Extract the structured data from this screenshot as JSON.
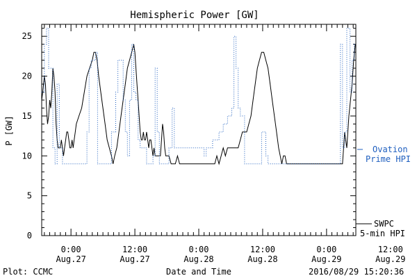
{
  "chart_data": {
    "type": "line",
    "title": "Hemispheric Power [GW]",
    "xlabel": "Date and Time",
    "ylabel": "P [GW]",
    "ylim": [
      0,
      26.5
    ],
    "xlim": [
      -5.5,
      53.5
    ],
    "yticks": [
      0,
      5,
      10,
      15,
      20,
      25
    ],
    "xticks": [
      {
        "x": 0,
        "line1": "0:00",
        "line2": "Aug.27"
      },
      {
        "x": 12,
        "line1": "12:00",
        "line2": "Aug.27"
      },
      {
        "x": 24,
        "line1": "0:00",
        "line2": "Aug.28"
      },
      {
        "x": 36,
        "line1": "12:00",
        "line2": "Aug.28"
      },
      {
        "x": 48,
        "line1": "0:00",
        "line2": "Aug.29"
      },
      {
        "x": 60,
        "line1": "12:00",
        "line2": "Aug.29"
      }
    ],
    "grid": false,
    "legend_position": "right",
    "series": [
      {
        "name": "SWPC 5-min HPI",
        "color": "#000000",
        "style": "solid",
        "points": [
          [
            -5.5,
            17
          ],
          [
            -5.3,
            18
          ],
          [
            -5.0,
            20
          ],
          [
            -4.8,
            19
          ],
          [
            -4.6,
            16
          ],
          [
            -4.4,
            14
          ],
          [
            -4.2,
            15
          ],
          [
            -4.0,
            17
          ],
          [
            -3.8,
            16
          ],
          [
            -3.6,
            18
          ],
          [
            -3.4,
            21
          ],
          [
            -3.2,
            20
          ],
          [
            -3.0,
            18
          ],
          [
            -2.8,
            14
          ],
          [
            -2.6,
            12
          ],
          [
            -2.4,
            11
          ],
          [
            -2.2,
            11
          ],
          [
            -2.0,
            11
          ],
          [
            -1.8,
            12
          ],
          [
            -1.6,
            11
          ],
          [
            -1.4,
            10
          ],
          [
            -1.2,
            11
          ],
          [
            -1.0,
            12
          ],
          [
            -0.8,
            13
          ],
          [
            -0.6,
            13
          ],
          [
            -0.4,
            12
          ],
          [
            -0.2,
            11
          ],
          [
            0.0,
            11
          ],
          [
            0.2,
            12
          ],
          [
            0.4,
            11
          ],
          [
            0.6,
            12
          ],
          [
            0.8,
            13
          ],
          [
            1.0,
            14
          ],
          [
            1.5,
            15
          ],
          [
            2.0,
            16
          ],
          [
            2.5,
            18
          ],
          [
            3.0,
            20
          ],
          [
            3.5,
            21
          ],
          [
            4.0,
            22
          ],
          [
            4.3,
            23
          ],
          [
            4.6,
            23
          ],
          [
            4.9,
            22
          ],
          [
            5.2,
            20
          ],
          [
            5.6,
            18
          ],
          [
            6.0,
            16
          ],
          [
            6.4,
            14
          ],
          [
            6.8,
            12
          ],
          [
            7.2,
            11
          ],
          [
            7.6,
            10
          ],
          [
            7.9,
            9
          ],
          [
            8.2,
            10
          ],
          [
            8.6,
            11
          ],
          [
            9.0,
            13
          ],
          [
            9.4,
            15
          ],
          [
            9.8,
            17
          ],
          [
            10.2,
            19
          ],
          [
            10.6,
            21
          ],
          [
            11.0,
            22
          ],
          [
            11.4,
            23
          ],
          [
            11.8,
            24
          ],
          [
            12.0,
            23
          ],
          [
            12.2,
            21
          ],
          [
            12.4,
            19
          ],
          [
            12.6,
            17
          ],
          [
            12.8,
            15
          ],
          [
            13.0,
            13
          ],
          [
            13.2,
            12
          ],
          [
            13.4,
            12
          ],
          [
            13.6,
            13
          ],
          [
            13.8,
            12
          ],
          [
            14.0,
            12
          ],
          [
            14.2,
            13
          ],
          [
            14.4,
            12
          ],
          [
            14.6,
            11
          ],
          [
            14.8,
            12
          ],
          [
            15.0,
            12
          ],
          [
            15.2,
            11
          ],
          [
            15.4,
            10
          ],
          [
            15.6,
            11
          ],
          [
            15.8,
            10
          ],
          [
            16.0,
            10
          ],
          [
            16.2,
            10
          ],
          [
            16.4,
            10
          ],
          [
            16.6,
            10
          ],
          [
            16.8,
            10
          ],
          [
            17.0,
            12
          ],
          [
            17.2,
            14
          ],
          [
            17.4,
            13
          ],
          [
            17.6,
            11
          ],
          [
            17.8,
            10
          ],
          [
            18.0,
            10
          ],
          [
            18.4,
            10
          ],
          [
            18.8,
            9
          ],
          [
            19.2,
            9
          ],
          [
            19.6,
            9
          ],
          [
            20.0,
            10
          ],
          [
            20.4,
            9
          ],
          [
            20.8,
            9
          ],
          [
            21.2,
            9
          ],
          [
            22.0,
            9
          ],
          [
            23.0,
            9
          ],
          [
            24.0,
            9
          ],
          [
            25.0,
            9
          ],
          [
            26.0,
            9
          ],
          [
            27.0,
            9
          ],
          [
            27.4,
            10
          ],
          [
            27.8,
            9
          ],
          [
            28.2,
            10
          ],
          [
            28.6,
            11
          ],
          [
            29.0,
            10
          ],
          [
            29.4,
            11
          ],
          [
            29.8,
            11
          ],
          [
            30.2,
            11
          ],
          [
            30.6,
            11
          ],
          [
            31.0,
            11
          ],
          [
            31.4,
            11
          ],
          [
            31.8,
            12
          ],
          [
            32.2,
            13
          ],
          [
            32.6,
            13
          ],
          [
            33.0,
            13
          ],
          [
            33.4,
            14
          ],
          [
            33.8,
            15
          ],
          [
            34.2,
            17
          ],
          [
            34.6,
            19
          ],
          [
            35.0,
            21
          ],
          [
            35.4,
            22
          ],
          [
            35.8,
            23
          ],
          [
            36.2,
            23
          ],
          [
            36.6,
            22
          ],
          [
            37.0,
            21
          ],
          [
            37.4,
            19
          ],
          [
            37.8,
            17
          ],
          [
            38.2,
            15
          ],
          [
            38.6,
            13
          ],
          [
            39.0,
            11
          ],
          [
            39.3,
            10
          ],
          [
            39.6,
            9
          ],
          [
            39.9,
            10
          ],
          [
            40.2,
            10
          ],
          [
            40.5,
            9
          ],
          [
            41,
            9
          ],
          [
            42,
            9
          ],
          [
            44,
            9
          ],
          [
            46,
            9
          ],
          [
            48,
            9
          ],
          [
            50,
            9
          ],
          [
            51,
            9
          ],
          [
            51.2,
            11
          ],
          [
            51.4,
            13
          ],
          [
            51.6,
            12
          ],
          [
            51.8,
            11
          ],
          [
            52.0,
            13
          ],
          [
            52.2,
            15
          ],
          [
            52.5,
            17
          ],
          [
            52.8,
            19
          ],
          [
            53.1,
            22
          ],
          [
            53.4,
            24
          ]
        ]
      },
      {
        "name": "Ovation Prime HPI",
        "color": "#1f5fbf",
        "style": "dotted",
        "points": [
          [
            -5.5,
            18
          ],
          [
            -5.0,
            18
          ],
          [
            -5.0,
            24
          ],
          [
            -4.6,
            24
          ],
          [
            -4.6,
            26
          ],
          [
            -4.2,
            26
          ],
          [
            -4.2,
            21
          ],
          [
            -3.4,
            21
          ],
          [
            -3.4,
            11
          ],
          [
            -3.0,
            11
          ],
          [
            -3.0,
            9
          ],
          [
            -2.6,
            9
          ],
          [
            -2.6,
            19
          ],
          [
            -2.2,
            19
          ],
          [
            -2.2,
            11
          ],
          [
            -1.6,
            11
          ],
          [
            -1.6,
            9
          ],
          [
            3.0,
            9
          ],
          [
            3.0,
            13
          ],
          [
            3.4,
            13
          ],
          [
            3.4,
            21
          ],
          [
            3.8,
            21
          ],
          [
            3.8,
            22
          ],
          [
            4.6,
            22
          ],
          [
            4.6,
            23
          ],
          [
            5.0,
            23
          ],
          [
            5.0,
            9
          ],
          [
            7.6,
            9
          ],
          [
            7.6,
            13
          ],
          [
            8.4,
            13
          ],
          [
            8.4,
            18
          ],
          [
            8.8,
            18
          ],
          [
            8.8,
            22
          ],
          [
            9.8,
            22
          ],
          [
            9.8,
            17
          ],
          [
            10.2,
            17
          ],
          [
            10.2,
            13
          ],
          [
            10.6,
            13
          ],
          [
            10.6,
            10
          ],
          [
            11.0,
            10
          ],
          [
            11.0,
            17
          ],
          [
            11.4,
            17
          ],
          [
            11.4,
            24
          ],
          [
            11.8,
            24
          ],
          [
            11.8,
            18
          ],
          [
            12.2,
            18
          ],
          [
            12.2,
            17
          ],
          [
            12.6,
            17
          ],
          [
            12.6,
            12
          ],
          [
            13.0,
            12
          ],
          [
            13.0,
            11
          ],
          [
            14.2,
            11
          ],
          [
            14.2,
            9
          ],
          [
            15.4,
            9
          ],
          [
            15.4,
            10
          ],
          [
            15.8,
            10
          ],
          [
            15.8,
            21
          ],
          [
            16.2,
            21
          ],
          [
            16.2,
            13
          ],
          [
            16.6,
            13
          ],
          [
            16.6,
            9
          ],
          [
            18.4,
            9
          ],
          [
            18.4,
            11
          ],
          [
            19.0,
            11
          ],
          [
            19.0,
            16
          ],
          [
            19.4,
            16
          ],
          [
            19.4,
            11
          ],
          [
            25.0,
            11
          ],
          [
            25.0,
            10
          ],
          [
            25.4,
            10
          ],
          [
            25.4,
            11
          ],
          [
            26.6,
            11
          ],
          [
            26.6,
            12
          ],
          [
            27.8,
            12
          ],
          [
            27.8,
            13
          ],
          [
            28.6,
            13
          ],
          [
            28.6,
            14
          ],
          [
            29.4,
            14
          ],
          [
            29.4,
            15
          ],
          [
            30.2,
            15
          ],
          [
            30.2,
            16
          ],
          [
            30.6,
            16
          ],
          [
            30.6,
            25
          ],
          [
            31.0,
            25
          ],
          [
            31.0,
            21
          ],
          [
            31.4,
            21
          ],
          [
            31.4,
            16
          ],
          [
            31.8,
            16
          ],
          [
            31.8,
            15
          ],
          [
            32.6,
            15
          ],
          [
            32.6,
            9
          ],
          [
            35.8,
            9
          ],
          [
            35.8,
            13
          ],
          [
            36.6,
            13
          ],
          [
            36.6,
            10
          ],
          [
            37.0,
            10
          ],
          [
            37.0,
            9
          ],
          [
            50.6,
            9
          ],
          [
            50.6,
            24
          ],
          [
            51.0,
            24
          ],
          [
            51.0,
            11
          ],
          [
            51.4,
            11
          ],
          [
            51.4,
            13
          ],
          [
            51.8,
            13
          ],
          [
            51.8,
            26
          ],
          [
            52.4,
            26
          ],
          [
            52.4,
            18
          ],
          [
            52.8,
            18
          ],
          [
            52.8,
            22
          ],
          [
            53.2,
            22
          ],
          [
            53.2,
            24
          ],
          [
            53.5,
            24
          ]
        ]
      }
    ]
  },
  "legend": {
    "ovation_line1": "Ovation",
    "ovation_line2": "Prime HPI",
    "swpc_line1": "SWPC",
    "swpc_line2": "5-min HPI"
  },
  "footer": {
    "plot_credit": "Plot: CCMC",
    "timestamp": "2016/08/29 15:20:36"
  }
}
